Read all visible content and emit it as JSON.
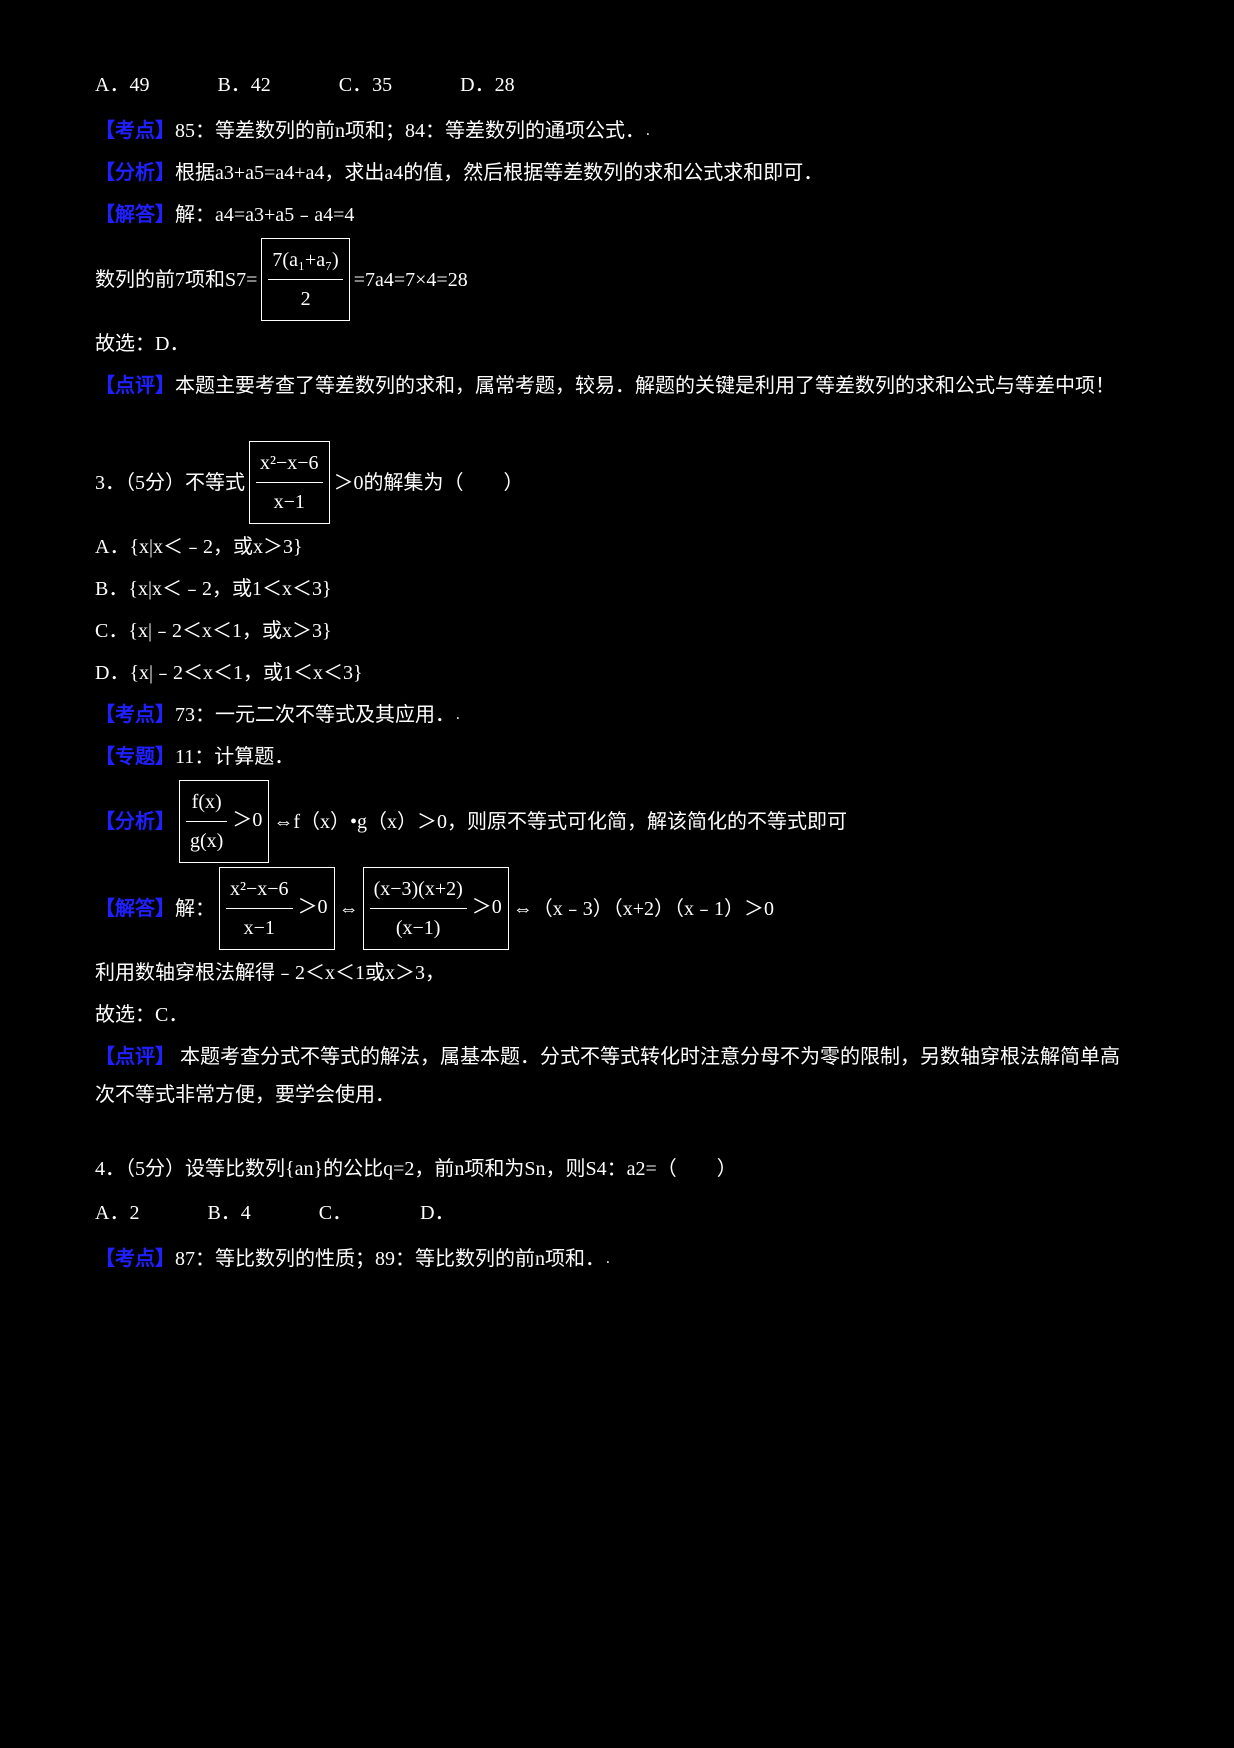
{
  "q2": {
    "optA": "A．49",
    "optB": "B．42",
    "optC": "C．35",
    "optD": "D．28",
    "kaoDianLabel": "【考点】",
    "kaoDianText": "85：等差数列的前n项和；84：等差数列的通项公式．",
    "fenXiLabel": "【分析】",
    "fenXiText": "根据a3+a5=a4+a4，求出a4的值，然后根据等差数列的求和公式求和即可．",
    "jieDaLabel": "【解答】",
    "jieDaL1": "解：a4=a3+a5﹣a4=4",
    "jieDaL2a": "数列的前7项和S7=",
    "jieDaFrac1Num": "7(a₁+a₇)",
    "jieDaFrac1Den": "2",
    "jieDaL2b": "=7a4=7×4=28",
    "jieDaL3": "故选：D．",
    "dianPingLabel": "【点评】",
    "dianPingText": "本题主要考查了等差数列的求和，属常考题，较易．解题的关键是利用了等差数列的求和公式与等差中项！"
  },
  "q3": {
    "numLine1a": "3．（5分）不等式",
    "fracExprNum": "x²−x−6",
    "fracExprDen": "x−1",
    "numLine1b": "＞0的解集为（　　）",
    "optA": "A．{x|x＜﹣2，或x＞3}",
    "optB": "B．{x|x＜﹣2，或1＜x＜3}",
    "optC": "C．{x|﹣2＜x＜1，或x＞3}",
    "optD": "D．{x|﹣2＜x＜1，或1＜x＜3}",
    "kaoDianLabel": "【考点】",
    "kaoDianText": "73：一元二次不等式及其应用．",
    "zhuanTiLabel": "【专题】",
    "zhuanTiText": "11：计算题．",
    "fenXiLabel": "【分析】",
    "fenXiFracNum": "f(x)",
    "fenXiFracDen": "g(x)",
    "fenXiText1": "＞0",
    "fenXiText2": "⇔f（x）•g（x）＞0，则原不等式可化简，解该简化的不等式即可",
    "jieDaLabel": "【解答】",
    "jieDaL1a": "解：",
    "frac2Num": "x²−x−6",
    "frac2Den": "x−1",
    "jieDaL1b": "＞0",
    "jieDaArrow": "⇔",
    "frac3Num": "(x−3)(x+2)",
    "frac3Den": "(x−1)",
    "jieDaL1c": "＞0",
    "jieDaL1d": "⇔（x﹣3）（x+2）（x﹣1）＞0",
    "jieDaL2": "利用数轴穿根法解得﹣2＜x＜1或x＞3，",
    "jieDaL3": "故选：C．",
    "dianPingLabel": "【点评】",
    "dianPingText": "本题考查分式不等式的解法，属基本题．分式不等式转化时注意分母不为零的限制，另数轴穿根法解简单高次不等式非常方便，要学会使用．"
  },
  "q4": {
    "stem1": "4．（5分）设等比数列{an}的公比q=2，前n项和为Sn，则S4：a2=（　　）",
    "optA": "A．2",
    "optB": "B．4",
    "optC": "C．",
    "optD": "D．",
    "kaoDianLabel": "【考点】",
    "kaoDianText": "87：等比数列的性质；89：等比数列的前n项和．"
  }
}
